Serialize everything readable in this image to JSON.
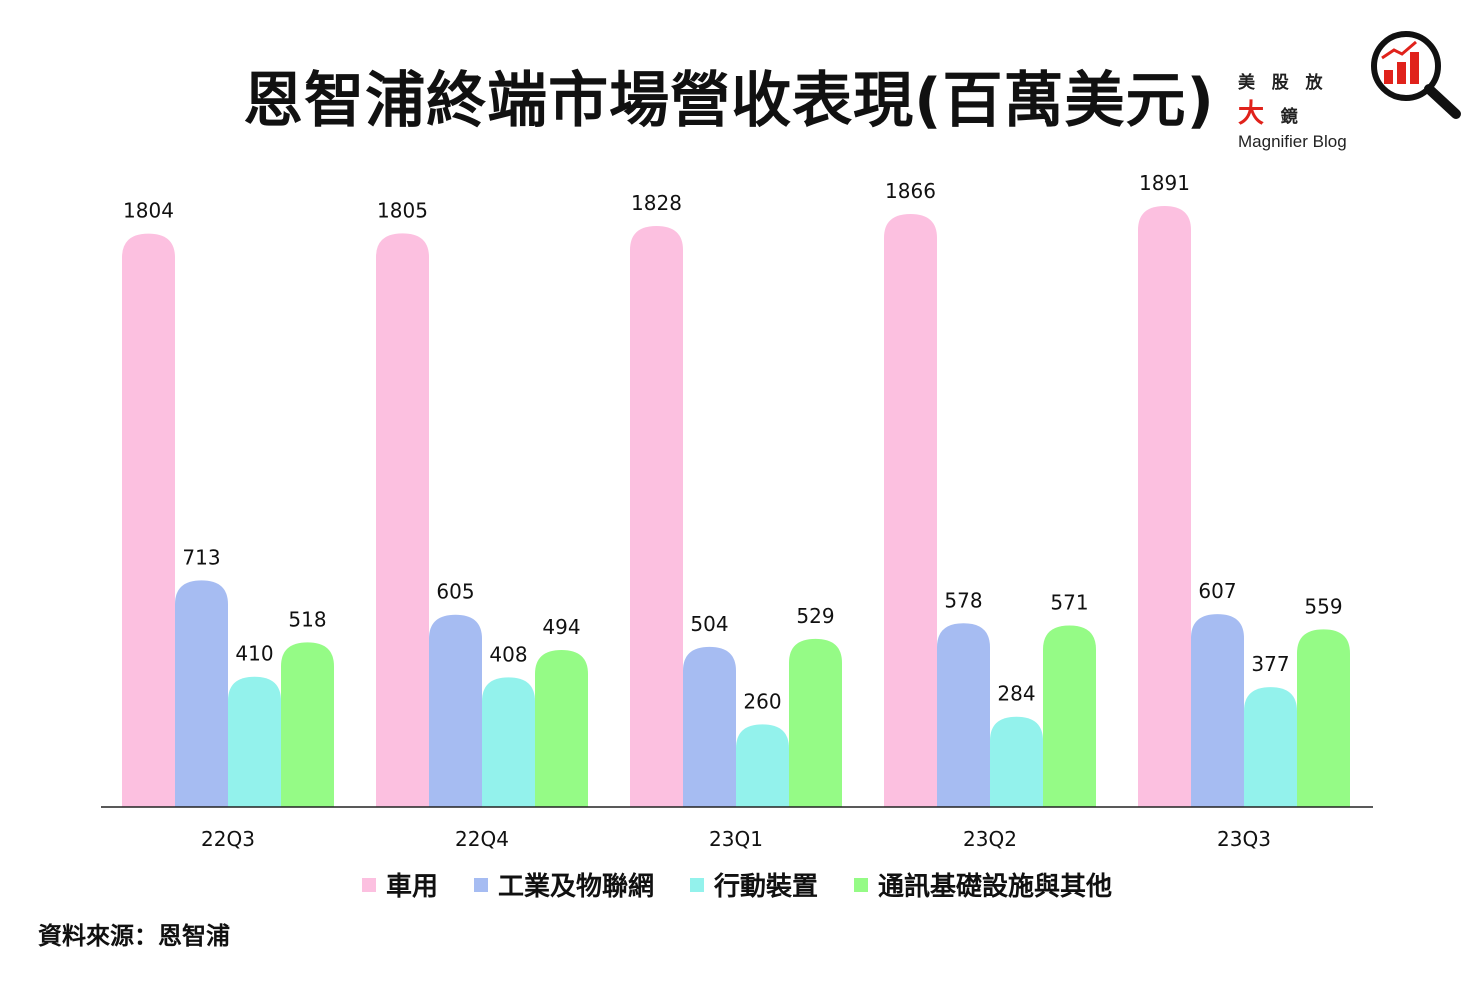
{
  "title": "恩智浦終端市場營收表現(百萬美元)",
  "brand": {
    "cn_pre": "美 股 放",
    "cn_accent": "大",
    "cn_post": "鏡",
    "en": "Magnifier Blog"
  },
  "source": "資料來源：恩智浦",
  "chart_data": {
    "type": "bar",
    "title": "恩智浦終端市場營收表現(百萬美元)",
    "categories": [
      "22Q3",
      "22Q4",
      "23Q1",
      "23Q2",
      "23Q3"
    ],
    "series": [
      {
        "name": "車用",
        "color": "#fcc0e0",
        "values": [
          1804,
          1805,
          1828,
          1866,
          1891
        ]
      },
      {
        "name": "工業及物聯網",
        "color": "#a6bcf2",
        "values": [
          713,
          605,
          504,
          578,
          607
        ]
      },
      {
        "name": "行動裝置",
        "color": "#93f2ec",
        "values": [
          410,
          408,
          260,
          284,
          377
        ]
      },
      {
        "name": "通訊基礎設施與其他",
        "color": "#95fb86",
        "values": [
          518,
          494,
          529,
          571,
          559
        ]
      }
    ],
    "ylim": [
      0,
      1891
    ],
    "grid": false,
    "legend": "bottom",
    "data_labels": true
  }
}
